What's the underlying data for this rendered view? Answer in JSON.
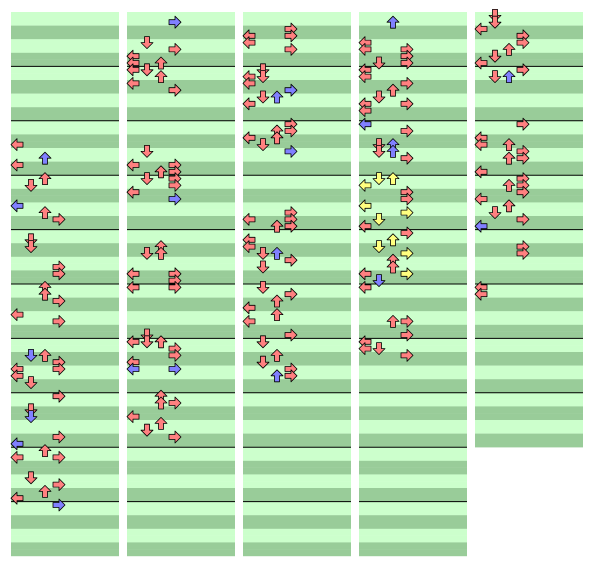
{
  "colors": {
    "row_light": "#ccffcc",
    "row_dark": "#99cc99",
    "measure_line": "#000000",
    "arrow_red": "#ff8080",
    "arrow_blue": "#8080ff",
    "arrow_yellow": "#ffff80",
    "arrow_stroke": "#000000"
  },
  "chart_data": {
    "type": "step-chart",
    "lanes": [
      "left",
      "down",
      "up",
      "right"
    ],
    "rows_per_measure": 8,
    "arrow_colors_by_subdivision": {
      "quarter": "red",
      "eighth": "blue",
      "sixteenth": "yellow"
    },
    "columns": [
      {
        "measures": 10,
        "notes": [
          [
            19,
            "left",
            "red"
          ],
          [
            22,
            "left",
            "red"
          ],
          [
            21,
            "up",
            "blue"
          ],
          [
            24,
            "up",
            "red"
          ],
          [
            25,
            "down",
            "red"
          ],
          [
            28,
            "left",
            "blue"
          ],
          [
            29,
            "up",
            "red"
          ],
          [
            30,
            "right",
            "red"
          ],
          [
            33,
            "down",
            "red"
          ],
          [
            34,
            "down",
            "red"
          ],
          [
            37,
            "right",
            "red"
          ],
          [
            38,
            "right",
            "red"
          ],
          [
            40,
            "up",
            "red"
          ],
          [
            41,
            "up",
            "red"
          ],
          [
            42,
            "right",
            "red"
          ],
          [
            44,
            "left",
            "red"
          ],
          [
            45,
            "right",
            "red"
          ],
          [
            50,
            "up",
            "red"
          ],
          [
            50,
            "down",
            "blue"
          ],
          [
            51,
            "right",
            "red"
          ],
          [
            52,
            "right",
            "red"
          ],
          [
            52,
            "left",
            "red"
          ],
          [
            53,
            "left",
            "red"
          ],
          [
            54,
            "down",
            "red"
          ],
          [
            56,
            "right",
            "red"
          ],
          [
            58,
            "down",
            "red"
          ],
          [
            59,
            "down",
            "blue"
          ],
          [
            62,
            "right",
            "red"
          ],
          [
            63,
            "left",
            "blue"
          ],
          [
            64,
            "up",
            "red"
          ],
          [
            65,
            "right",
            "red"
          ],
          [
            65,
            "left",
            "red"
          ],
          [
            68,
            "down",
            "red"
          ],
          [
            69,
            "right",
            "red"
          ],
          [
            70,
            "up",
            "red"
          ],
          [
            71,
            "left",
            "red"
          ],
          [
            72,
            "right",
            "blue"
          ]
        ]
      },
      {
        "measures": 10,
        "notes": [
          [
            1,
            "right",
            "blue"
          ],
          [
            4,
            "down",
            "red"
          ],
          [
            5,
            "right",
            "red"
          ],
          [
            6,
            "left",
            "red"
          ],
          [
            7,
            "left",
            "red"
          ],
          [
            7,
            "up",
            "red"
          ],
          [
            8,
            "left",
            "red"
          ],
          [
            8,
            "down",
            "red"
          ],
          [
            9,
            "up",
            "red"
          ],
          [
            10,
            "left",
            "red"
          ],
          [
            11,
            "right",
            "red"
          ],
          [
            20,
            "down",
            "red"
          ],
          [
            22,
            "left",
            "red"
          ],
          [
            22,
            "right",
            "red"
          ],
          [
            23,
            "up",
            "red"
          ],
          [
            23,
            "right",
            "red"
          ],
          [
            24,
            "down",
            "red"
          ],
          [
            24,
            "right",
            "red"
          ],
          [
            25,
            "right",
            "red"
          ],
          [
            26,
            "left",
            "red"
          ],
          [
            27,
            "right",
            "blue"
          ],
          [
            34,
            "up",
            "red"
          ],
          [
            35,
            "down",
            "red"
          ],
          [
            35,
            "up",
            "red"
          ],
          [
            38,
            "right",
            "red"
          ],
          [
            38,
            "left",
            "red"
          ],
          [
            39,
            "right",
            "red"
          ],
          [
            40,
            "left",
            "red"
          ],
          [
            40,
            "right",
            "red"
          ],
          [
            47,
            "down",
            "red"
          ],
          [
            48,
            "left",
            "red"
          ],
          [
            48,
            "down",
            "red"
          ],
          [
            48,
            "up",
            "red"
          ],
          [
            49,
            "right",
            "red"
          ],
          [
            50,
            "right",
            "red"
          ],
          [
            51,
            "left",
            "red"
          ],
          [
            52,
            "right",
            "blue"
          ],
          [
            52,
            "left",
            "blue"
          ],
          [
            56,
            "up",
            "red"
          ],
          [
            57,
            "up",
            "red"
          ],
          [
            57,
            "right",
            "red"
          ],
          [
            59,
            "left",
            "red"
          ],
          [
            60,
            "up",
            "red"
          ],
          [
            61,
            "down",
            "red"
          ],
          [
            62,
            "right",
            "red"
          ]
        ]
      },
      {
        "measures": 10,
        "notes": [
          [
            2,
            "right",
            "red"
          ],
          [
            3,
            "left",
            "red"
          ],
          [
            3,
            "right",
            "red"
          ],
          [
            4,
            "left",
            "red"
          ],
          [
            5,
            "right",
            "red"
          ],
          [
            8,
            "down",
            "red"
          ],
          [
            9,
            "left",
            "red"
          ],
          [
            9,
            "down",
            "red"
          ],
          [
            10,
            "left",
            "red"
          ],
          [
            11,
            "right",
            "blue"
          ],
          [
            12,
            "down",
            "red"
          ],
          [
            12,
            "up",
            "blue"
          ],
          [
            13,
            "left",
            "red"
          ],
          [
            16,
            "right",
            "red"
          ],
          [
            17,
            "right",
            "red"
          ],
          [
            17,
            "up",
            "red"
          ],
          [
            18,
            "left",
            "red"
          ],
          [
            18,
            "up",
            "red"
          ],
          [
            19,
            "down",
            "red"
          ],
          [
            20,
            "right",
            "blue"
          ],
          [
            29,
            "right",
            "red"
          ],
          [
            30,
            "left",
            "red"
          ],
          [
            30,
            "right",
            "red"
          ],
          [
            31,
            "up",
            "red"
          ],
          [
            31,
            "right",
            "red"
          ],
          [
            33,
            "left",
            "red"
          ],
          [
            34,
            "left",
            "red"
          ],
          [
            35,
            "down",
            "red"
          ],
          [
            35,
            "up",
            "blue"
          ],
          [
            36,
            "right",
            "red"
          ],
          [
            37,
            "down",
            "red"
          ],
          [
            40,
            "down",
            "red"
          ],
          [
            41,
            "right",
            "red"
          ],
          [
            42,
            "up",
            "red"
          ],
          [
            43,
            "left",
            "red"
          ],
          [
            44,
            "up",
            "red"
          ],
          [
            45,
            "left",
            "red"
          ],
          [
            47,
            "right",
            "red"
          ],
          [
            48,
            "down",
            "red"
          ],
          [
            50,
            "up",
            "red"
          ],
          [
            51,
            "down",
            "red"
          ],
          [
            52,
            "right",
            "red"
          ],
          [
            53,
            "up",
            "blue"
          ],
          [
            53,
            "right",
            "red"
          ]
        ]
      },
      {
        "measures": 10,
        "notes": [
          [
            1,
            "up",
            "blue"
          ],
          [
            4,
            "left",
            "red"
          ],
          [
            5,
            "left",
            "red"
          ],
          [
            5,
            "right",
            "red"
          ],
          [
            6,
            "right",
            "red"
          ],
          [
            7,
            "right",
            "red"
          ],
          [
            7,
            "down",
            "red"
          ],
          [
            8,
            "left",
            "red"
          ],
          [
            9,
            "left",
            "red"
          ],
          [
            10,
            "right",
            "red"
          ],
          [
            11,
            "up",
            "red"
          ],
          [
            12,
            "down",
            "red"
          ],
          [
            13,
            "left",
            "red"
          ],
          [
            13,
            "right",
            "red"
          ],
          [
            14,
            "left",
            "red"
          ],
          [
            16,
            "left",
            "blue"
          ],
          [
            17,
            "right",
            "red"
          ],
          [
            19,
            "down",
            "red"
          ],
          [
            19,
            "up",
            "blue"
          ],
          [
            20,
            "down",
            "red"
          ],
          [
            20,
            "up",
            "blue"
          ],
          [
            21,
            "right",
            "red"
          ],
          [
            24,
            "down",
            "yellow"
          ],
          [
            24,
            "up",
            "yellow"
          ],
          [
            25,
            "left",
            "yellow"
          ],
          [
            26,
            "right",
            "red"
          ],
          [
            27,
            "right",
            "red"
          ],
          [
            28,
            "left",
            "yellow"
          ],
          [
            29,
            "right",
            "yellow"
          ],
          [
            30,
            "down",
            "yellow"
          ],
          [
            31,
            "left",
            "red"
          ],
          [
            32,
            "right",
            "red"
          ],
          [
            33,
            "up",
            "yellow"
          ],
          [
            34,
            "down",
            "yellow"
          ],
          [
            35,
            "right",
            "yellow"
          ],
          [
            36,
            "up",
            "red"
          ],
          [
            37,
            "up",
            "red"
          ],
          [
            38,
            "left",
            "red"
          ],
          [
            38,
            "right",
            "yellow"
          ],
          [
            39,
            "down",
            "blue"
          ],
          [
            40,
            "left",
            "red"
          ],
          [
            45,
            "up",
            "red"
          ],
          [
            45,
            "right",
            "red"
          ],
          [
            47,
            "right",
            "red"
          ],
          [
            48,
            "left",
            "red"
          ],
          [
            49,
            "left",
            "red"
          ],
          [
            49,
            "down",
            "red"
          ],
          [
            50,
            "right",
            "red"
          ]
        ]
      },
      {
        "measures": 8,
        "notes": [
          [
            0,
            "down",
            "red"
          ],
          [
            1,
            "down",
            "red"
          ],
          [
            2,
            "left",
            "red"
          ],
          [
            3,
            "right",
            "red"
          ],
          [
            4,
            "right",
            "red"
          ],
          [
            5,
            "up",
            "red"
          ],
          [
            6,
            "down",
            "red"
          ],
          [
            7,
            "left",
            "red"
          ],
          [
            8,
            "right",
            "red"
          ],
          [
            9,
            "down",
            "red"
          ],
          [
            9,
            "up",
            "blue"
          ],
          [
            16,
            "right",
            "red"
          ],
          [
            18,
            "left",
            "red"
          ],
          [
            19,
            "left",
            "red"
          ],
          [
            19,
            "up",
            "red"
          ],
          [
            20,
            "right",
            "red"
          ],
          [
            21,
            "up",
            "red"
          ],
          [
            21,
            "right",
            "red"
          ],
          [
            23,
            "left",
            "red"
          ],
          [
            24,
            "right",
            "red"
          ],
          [
            25,
            "right",
            "red"
          ],
          [
            25,
            "up",
            "red"
          ],
          [
            26,
            "right",
            "red"
          ],
          [
            27,
            "left",
            "red"
          ],
          [
            28,
            "up",
            "red"
          ],
          [
            29,
            "down",
            "red"
          ],
          [
            30,
            "right",
            "red"
          ],
          [
            31,
            "left",
            "blue"
          ],
          [
            34,
            "right",
            "red"
          ],
          [
            35,
            "right",
            "red"
          ],
          [
            40,
            "left",
            "red"
          ],
          [
            41,
            "left",
            "red"
          ]
        ]
      }
    ]
  }
}
